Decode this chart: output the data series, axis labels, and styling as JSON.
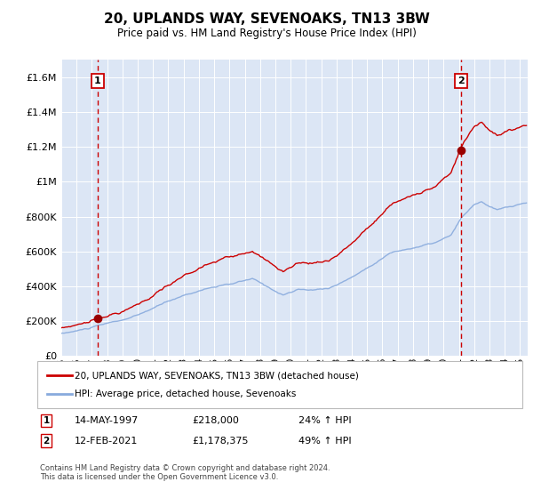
{
  "title": "20, UPLANDS WAY, SEVENOAKS, TN13 3BW",
  "subtitle": "Price paid vs. HM Land Registry's House Price Index (HPI)",
  "ylabel_ticks": [
    "£0",
    "£200K",
    "£400K",
    "£600K",
    "£800K",
    "£1M",
    "£1.2M",
    "£1.4M",
    "£1.6M"
  ],
  "ytick_values": [
    0,
    200000,
    400000,
    600000,
    800000,
    1000000,
    1200000,
    1400000,
    1600000
  ],
  "ylim": [
    0,
    1700000
  ],
  "xlim_start": 1995.0,
  "xlim_end": 2025.5,
  "purchase1_date": 1997.37,
  "purchase1_price": 218000,
  "purchase2_date": 2021.12,
  "purchase2_price": 1178375,
  "line_color_red": "#cc0000",
  "line_color_blue": "#88aadd",
  "vline_color": "#cc0000",
  "marker_color": "#990000",
  "bg_color": "#dce6f5",
  "grid_color": "#ffffff",
  "legend_label_red": "20, UPLANDS WAY, SEVENOAKS, TN13 3BW (detached house)",
  "legend_label_blue": "HPI: Average price, detached house, Sevenoaks",
  "annotation1": [
    "1",
    "14-MAY-1997",
    "£218,000",
    "24% ↑ HPI"
  ],
  "annotation2": [
    "2",
    "12-FEB-2021",
    "£1,178,375",
    "49% ↑ HPI"
  ],
  "footer": "Contains HM Land Registry data © Crown copyright and database right 2024.\nThis data is licensed under the Open Government Licence v3.0.",
  "xtick_years": [
    1995,
    1996,
    1997,
    1998,
    1999,
    2000,
    2001,
    2002,
    2003,
    2004,
    2005,
    2006,
    2007,
    2008,
    2009,
    2010,
    2011,
    2012,
    2013,
    2014,
    2015,
    2016,
    2017,
    2018,
    2019,
    2020,
    2021,
    2022,
    2023,
    2024,
    2025
  ]
}
